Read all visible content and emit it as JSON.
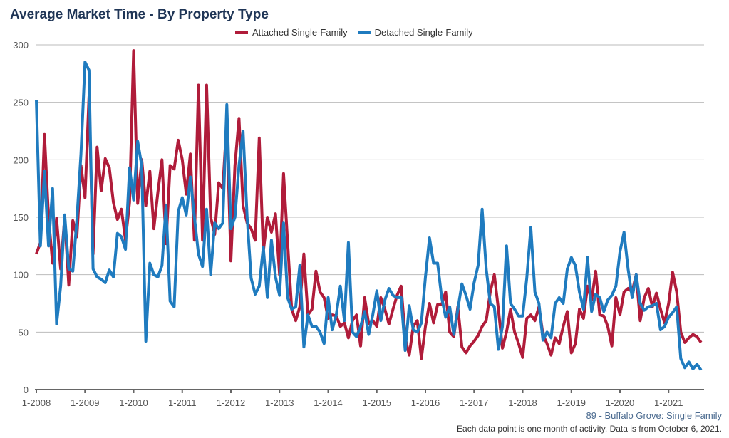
{
  "chart_data": {
    "type": "line",
    "title": "Average Market Time - By Property Type",
    "interval": "monthly",
    "x_range": [
      "1-2008",
      "9-2021"
    ],
    "x_ticks": [
      "1-2008",
      "1-2009",
      "1-2010",
      "1-2011",
      "1-2012",
      "1-2013",
      "1-2014",
      "1-2015",
      "1-2016",
      "1-2017",
      "1-2018",
      "1-2019",
      "1-2020",
      "1-2021"
    ],
    "y_ticks": [
      0,
      50,
      100,
      150,
      200,
      250,
      300
    ],
    "ylim": [
      0,
      300
    ],
    "grid": true,
    "legend_position": "top",
    "series": [
      {
        "name": "Attached Single-Family",
        "color": "#b01c3a",
        "values": [
          118,
          128,
          222,
          150,
          110,
          149,
          105,
          150,
          91,
          147,
          133,
          195,
          167,
          255,
          118,
          211,
          173,
          201,
          193,
          163,
          148,
          157,
          130,
          163,
          295,
          162,
          200,
          160,
          190,
          140,
          172,
          200,
          127,
          195,
          192,
          217,
          200,
          170,
          205,
          130,
          265,
          130,
          265,
          150,
          135,
          180,
          175,
          233,
          112,
          195,
          236,
          160,
          145,
          140,
          130,
          219,
          120,
          150,
          137,
          153,
          100,
          188,
          128,
          70,
          60,
          72,
          118,
          65,
          70,
          103,
          85,
          80,
          62,
          65,
          64,
          55,
          58,
          45,
          60,
          65,
          38,
          80,
          57,
          60,
          55,
          80,
          70,
          57,
          70,
          82,
          90,
          45,
          30,
          55,
          60,
          27,
          55,
          75,
          58,
          74,
          74,
          85,
          50,
          46,
          72,
          37,
          32,
          38,
          42,
          47,
          55,
          60,
          85,
          100,
          70,
          36,
          50,
          70,
          50,
          40,
          28,
          62,
          65,
          60,
          72,
          48,
          40,
          30,
          45,
          40,
          55,
          68,
          32,
          40,
          70,
          62,
          90,
          78,
          103,
          65,
          64,
          55,
          38,
          80,
          65,
          85,
          88,
          85,
          100,
          60,
          80,
          88,
          72,
          84,
          70,
          58,
          75,
          102,
          85,
          50,
          41,
          45,
          48,
          46,
          41
        ]
      },
      {
        "name": "Detached Single-Family",
        "color": "#1f7bbf",
        "values": [
          252,
          125,
          190,
          125,
          175,
          57,
          90,
          152,
          105,
          103,
          148,
          205,
          285,
          278,
          105,
          98,
          96,
          93,
          104,
          98,
          136,
          133,
          122,
          193,
          165,
          216,
          195,
          42,
          110,
          100,
          98,
          108,
          160,
          77,
          72,
          155,
          167,
          152,
          185,
          150,
          118,
          107,
          157,
          100,
          145,
          140,
          145,
          248,
          140,
          150,
          195,
          225,
          150,
          97,
          83,
          90,
          124,
          80,
          130,
          98,
          82,
          145,
          80,
          70,
          72,
          108,
          37,
          65,
          55,
          55,
          50,
          40,
          80,
          52,
          65,
          90,
          60,
          128,
          50,
          46,
          55,
          68,
          48,
          65,
          86,
          60,
          78,
          88,
          82,
          80,
          80,
          34,
          73,
          52,
          50,
          58,
          98,
          132,
          110,
          110,
          80,
          63,
          72,
          48,
          70,
          92,
          82,
          70,
          93,
          108,
          157,
          105,
          75,
          72,
          35,
          55,
          125,
          75,
          70,
          64,
          64,
          97,
          141,
          85,
          75,
          43,
          50,
          45,
          75,
          80,
          75,
          105,
          115,
          108,
          85,
          70,
          115,
          68,
          83,
          80,
          68,
          78,
          82,
          90,
          120,
          137,
          105,
          80,
          100,
          75,
          69,
          72,
          73,
          75,
          52,
          55,
          63,
          67,
          72,
          27,
          19,
          24,
          18,
          22,
          17
        ]
      }
    ]
  },
  "subtitle": "89 - Buffalo Grove: Single Family",
  "footnote": "Each data point is one month of activity. Data is from October 6, 2021."
}
